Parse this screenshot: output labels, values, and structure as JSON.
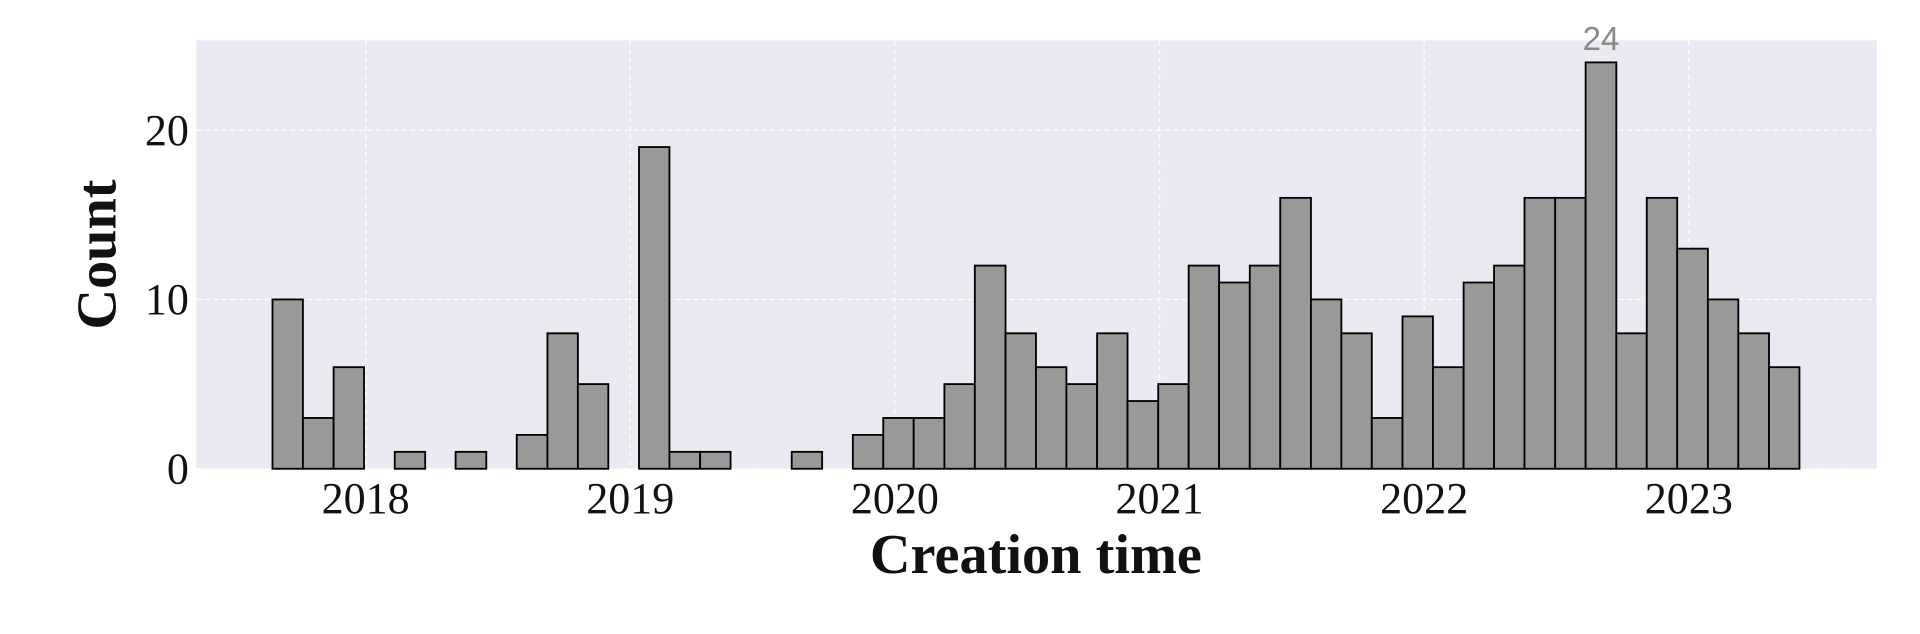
{
  "chart_data": {
    "type": "histogram",
    "xlabel": "Creation time",
    "ylabel": "Count",
    "bins": [
      2017.648,
      2017.763,
      2017.879,
      2017.994,
      2018.11,
      2018.225,
      2018.34,
      2018.456,
      2018.571,
      2018.687,
      2018.802,
      2018.917,
      2019.033,
      2019.148,
      2019.264,
      2019.379,
      2019.494,
      2019.61,
      2019.725,
      2019.841,
      2019.956,
      2020.071,
      2020.187,
      2020.302,
      2020.418,
      2020.533,
      2020.648,
      2020.764,
      2020.879,
      2020.995,
      2021.11,
      2021.225,
      2021.341,
      2021.456,
      2021.572,
      2021.687,
      2021.802,
      2021.918,
      2022.033,
      2022.149,
      2022.264,
      2022.379,
      2022.495,
      2022.61,
      2022.726,
      2022.841,
      2022.956,
      2023.072,
      2023.187,
      2023.303,
      2023.418
    ],
    "values": [
      10,
      3,
      6,
      0,
      1,
      0,
      1,
      0,
      2,
      8,
      5,
      0,
      19,
      1,
      1,
      0,
      0,
      1,
      0,
      2,
      3,
      3,
      5,
      12,
      8,
      6,
      5,
      8,
      4,
      5,
      12,
      11,
      12,
      16,
      10,
      8,
      3,
      9,
      6,
      11,
      12,
      16,
      16,
      24,
      8,
      16,
      13,
      10,
      8,
      6
    ],
    "color": "#999999",
    "edgecolor": "#000000",
    "xlim": [
      2017.36,
      2023.71
    ],
    "xticks": [
      2018,
      2019,
      2020,
      2021,
      2022,
      2023
    ],
    "ylim": [
      0,
      25.3
    ],
    "yticks": [
      0,
      10,
      20
    ],
    "grid": true,
    "label_max": true
  }
}
